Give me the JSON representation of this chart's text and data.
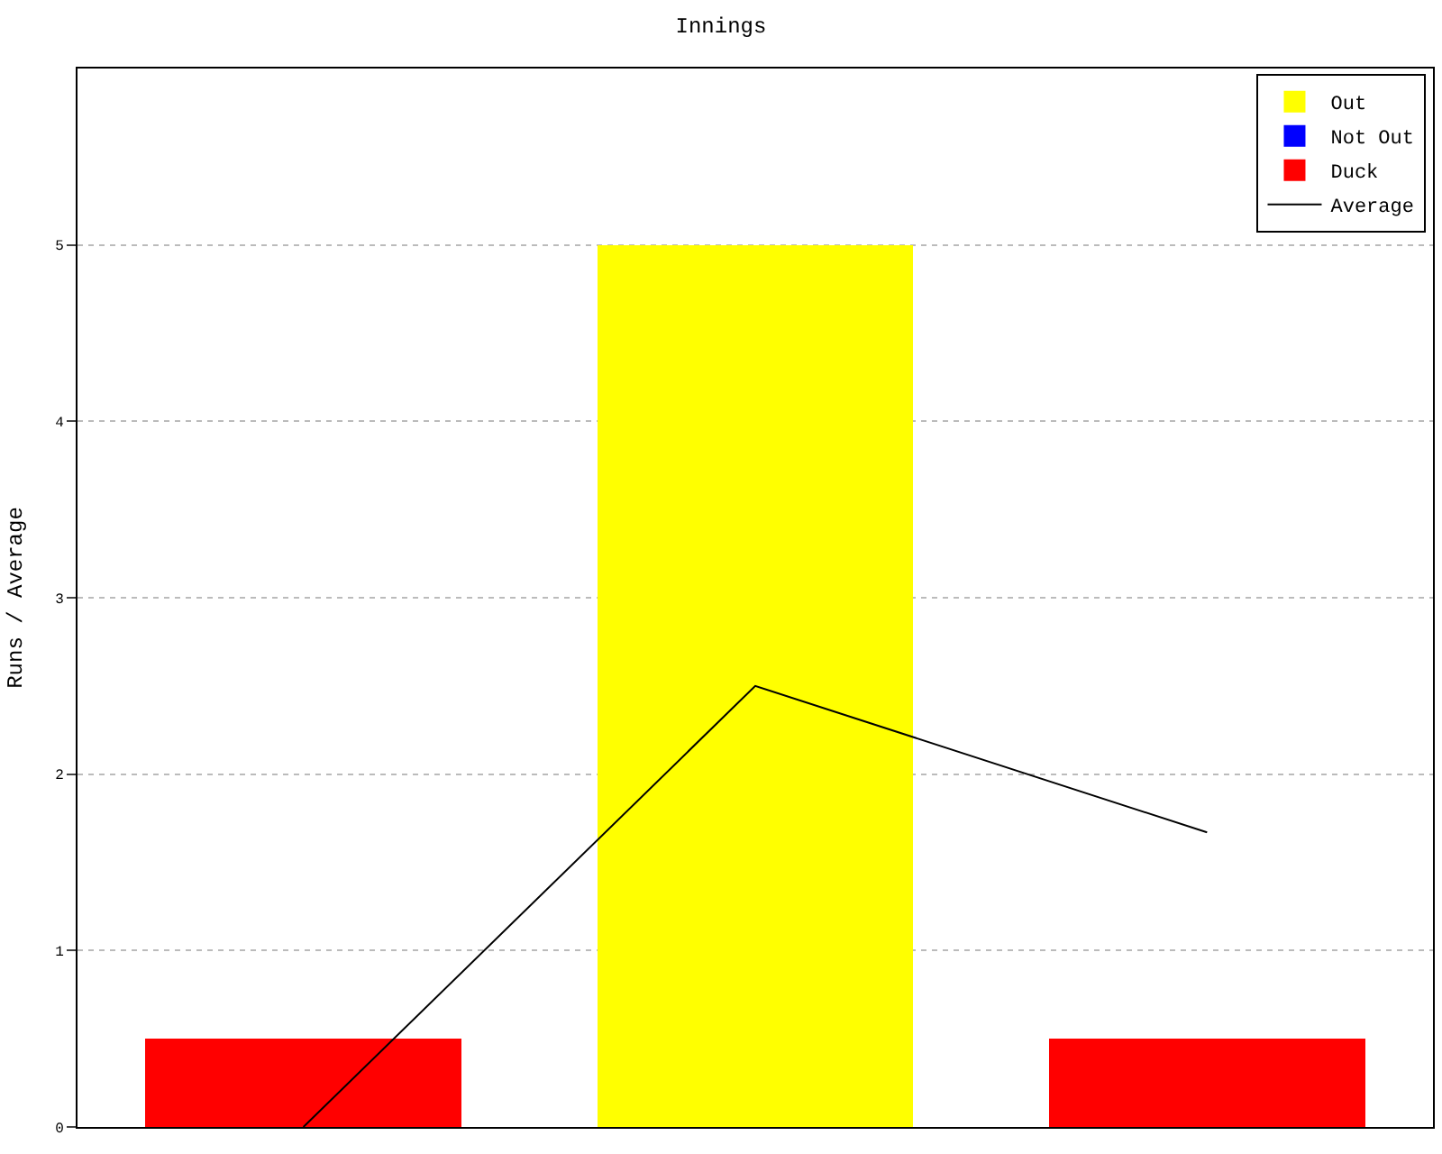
{
  "chart_data": {
    "type": "bar",
    "title": "Innings",
    "ylabel": "Runs / Average",
    "categories": [
      null,
      null,
      null
    ],
    "stacked": true,
    "series": [
      {
        "name": "Average",
        "type": "line",
        "color": "#000000",
        "values": [
          0,
          2.5,
          1.67
        ]
      },
      {
        "name": "Out",
        "color": "#ffff00",
        "values": [
          null,
          5,
          null
        ]
      },
      {
        "name": "Not Out",
        "color": "#0000ff",
        "values": [
          null,
          null,
          null
        ]
      },
      {
        "name": "Duck",
        "color": "#ff0000",
        "values": [
          0.5,
          null,
          0.5
        ]
      }
    ],
    "ylim": [
      0,
      6
    ],
    "yticks": [
      0,
      1,
      2,
      3,
      4,
      5
    ],
    "grid": "y",
    "legend": "top right",
    "tick_labels": "y",
    "marker": "none",
    "line_style": "solid"
  }
}
